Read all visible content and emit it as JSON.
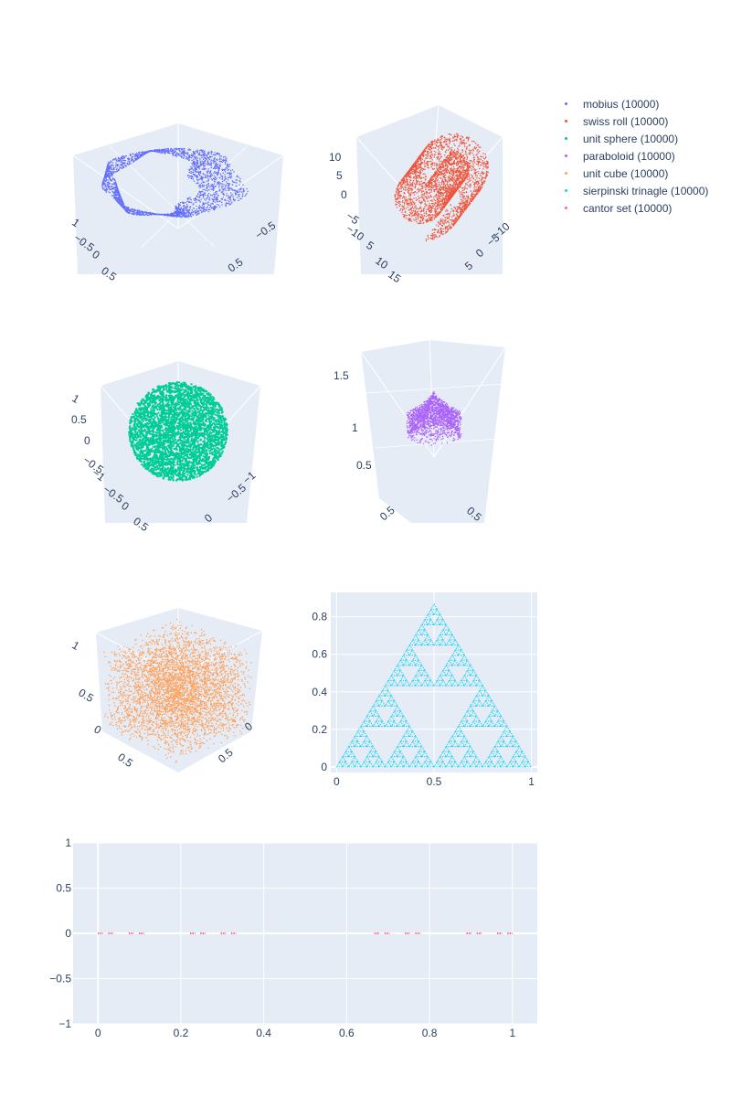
{
  "chart_data": [
    {
      "type": "scatter3d",
      "series_name": "mobius (10000)",
      "color": "#636efa",
      "shape": "mobius-strip",
      "axis_tick_labels": [
        "1",
        "−0.5",
        "0",
        "0.5",
        "−0.5",
        "0.5"
      ]
    },
    {
      "type": "scatter3d",
      "series_name": "swiss roll (10000)",
      "color": "#EF553B",
      "shape": "swiss-roll",
      "axis_tick_labels": [
        "10",
        "5",
        "0",
        "−5",
        "−10",
        "5",
        "10",
        "15",
        "−10",
        "−5",
        "0",
        "5"
      ]
    },
    {
      "type": "scatter3d",
      "series_name": "unit sphere (10000)",
      "color": "#00cc96",
      "shape": "sphere",
      "axis_tick_labels": [
        "1",
        "0.5",
        "0",
        "−0.5",
        "−1",
        "−0.5",
        "0",
        "0.5",
        "−1",
        "−0.5",
        "0"
      ]
    },
    {
      "type": "scatter3d",
      "series_name": "paraboloid (10000)",
      "color": "#ab63fa",
      "shape": "paraboloid",
      "axis_tick_labels": [
        "1.5",
        "1",
        "0.5",
        "0.5",
        "0.5"
      ]
    },
    {
      "type": "scatter3d",
      "series_name": "unit cube (10000)",
      "color": "#FFA15A",
      "shape": "cube",
      "axis_tick_labels": [
        "1",
        "0.5",
        "0",
        "0.5",
        "0",
        "0.5"
      ]
    },
    {
      "type": "scatter",
      "series_name": "sierpinski trinagle (10000)",
      "color": "#19d3f3",
      "shape": "sierpinski-triangle",
      "xlim": [
        -0.03,
        1.03
      ],
      "ylim": [
        -0.03,
        0.93
      ],
      "x_ticks": [
        0,
        0.5,
        1
      ],
      "y_ticks": [
        0,
        0.2,
        0.4,
        0.6,
        0.8
      ],
      "vertices": [
        [
          0,
          0
        ],
        [
          1,
          0
        ],
        [
          0.5,
          0.866
        ]
      ],
      "depth": 5
    },
    {
      "type": "scatter",
      "series_name": "cantor set (10000)",
      "color": "#FF6692",
      "shape": "cantor-set",
      "xlim": [
        -0.06,
        1.06
      ],
      "ylim": [
        -1,
        1
      ],
      "x_ticks": [
        0,
        0.2,
        0.4,
        0.6,
        0.8,
        1
      ],
      "y_ticks": [
        -1,
        -0.5,
        0,
        0.5,
        1
      ],
      "y_value": 0,
      "depth": 4
    }
  ],
  "legend": [
    {
      "label": "mobius (10000)",
      "color": "#636efa"
    },
    {
      "label": "swiss roll (10000)",
      "color": "#EF553B"
    },
    {
      "label": "unit sphere (10000)",
      "color": "#00cc96"
    },
    {
      "label": "paraboloid (10000)",
      "color": "#ab63fa"
    },
    {
      "label": "unit cube (10000)",
      "color": "#FFA15A"
    },
    {
      "label": "sierpinski trinagle (10000)",
      "color": "#19d3f3"
    },
    {
      "label": "cantor set (10000)",
      "color": "#FF6692"
    }
  ],
  "labels": {
    "x": [
      "0",
      "0.2",
      "0.4",
      "0.6",
      "0.8",
      "1"
    ],
    "y": [
      "−1",
      "−0.5",
      "0",
      "0.5",
      "1"
    ],
    "tri_x": [
      "0",
      "0.5",
      "1"
    ],
    "tri_y": [
      "0",
      "0.2",
      "0.4",
      "0.6",
      "0.8"
    ]
  }
}
